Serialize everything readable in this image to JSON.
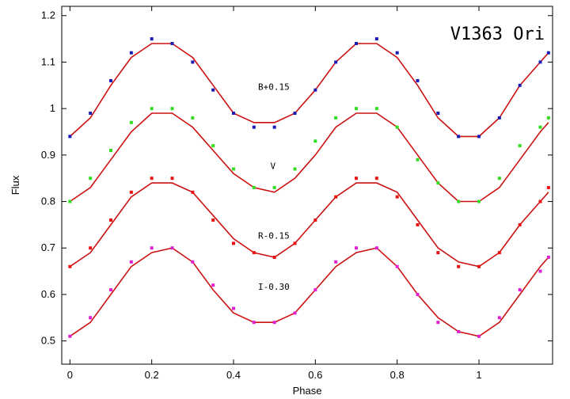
{
  "chart_data": {
    "type": "scatter",
    "title": "V1363 Ori",
    "xlabel": "Phase",
    "ylabel": "Flux",
    "xlim": [
      -0.02,
      1.18
    ],
    "ylim": [
      0.45,
      1.22
    ],
    "xticks": [
      0,
      0.2,
      0.4,
      0.6,
      0.8,
      1
    ],
    "xtick_labels": [
      "0",
      "0.2",
      "0.4",
      "0.6",
      "0.8",
      "1"
    ],
    "yticks": [
      0.5,
      0.6,
      0.7,
      0.8,
      0.9,
      1.0,
      1.1,
      1.2
    ],
    "ytick_labels": [
      "0.5",
      "0.6",
      "0.7",
      "0.8",
      "0.9",
      "1",
      "1.1",
      "1.2"
    ],
    "grid": false,
    "model_color": "#cc1111",
    "series": [
      {
        "name": "B+0.15",
        "color": "#1a1ab4",
        "label_at": [
          0.46,
          1.04
        ],
        "x": [
          0.0,
          0.05,
          0.1,
          0.15,
          0.2,
          0.25,
          0.3,
          0.35,
          0.4,
          0.45,
          0.5,
          0.55,
          0.6,
          0.65,
          0.7,
          0.75,
          0.8,
          0.85,
          0.9,
          0.95,
          1.0,
          1.05,
          1.1,
          1.15,
          1.17
        ],
        "y": [
          0.94,
          0.99,
          1.06,
          1.12,
          1.15,
          1.14,
          1.1,
          1.04,
          0.99,
          0.96,
          0.96,
          0.99,
          1.04,
          1.1,
          1.14,
          1.15,
          1.12,
          1.06,
          0.99,
          0.94,
          0.94,
          0.98,
          1.05,
          1.1,
          1.12
        ],
        "model_x": [
          0.0,
          0.05,
          0.1,
          0.15,
          0.2,
          0.25,
          0.3,
          0.35,
          0.4,
          0.45,
          0.5,
          0.55,
          0.6,
          0.65,
          0.7,
          0.75,
          0.8,
          0.85,
          0.9,
          0.95,
          1.0,
          1.05,
          1.1,
          1.15,
          1.17
        ],
        "model_y": [
          0.94,
          0.98,
          1.05,
          1.11,
          1.14,
          1.14,
          1.11,
          1.05,
          0.99,
          0.97,
          0.97,
          0.99,
          1.04,
          1.1,
          1.14,
          1.14,
          1.11,
          1.05,
          0.98,
          0.94,
          0.94,
          0.98,
          1.05,
          1.1,
          1.12
        ]
      },
      {
        "name": "V",
        "color": "#33dd22",
        "label_at": [
          0.49,
          0.87
        ],
        "x": [
          0.0,
          0.05,
          0.1,
          0.15,
          0.2,
          0.25,
          0.3,
          0.35,
          0.4,
          0.45,
          0.5,
          0.55,
          0.6,
          0.65,
          0.7,
          0.75,
          0.8,
          0.85,
          0.9,
          0.95,
          1.0,
          1.05,
          1.1,
          1.15,
          1.17
        ],
        "y": [
          0.8,
          0.85,
          0.91,
          0.97,
          1.0,
          1.0,
          0.98,
          0.92,
          0.87,
          0.83,
          0.83,
          0.87,
          0.93,
          0.98,
          1.0,
          1.0,
          0.96,
          0.89,
          0.84,
          0.8,
          0.8,
          0.85,
          0.92,
          0.96,
          0.98
        ],
        "model_x": [
          0.0,
          0.05,
          0.1,
          0.15,
          0.2,
          0.25,
          0.3,
          0.35,
          0.4,
          0.45,
          0.5,
          0.55,
          0.6,
          0.65,
          0.7,
          0.75,
          0.8,
          0.85,
          0.9,
          0.95,
          1.0,
          1.05,
          1.1,
          1.15,
          1.17
        ],
        "model_y": [
          0.8,
          0.83,
          0.89,
          0.95,
          0.99,
          0.99,
          0.96,
          0.91,
          0.86,
          0.83,
          0.82,
          0.85,
          0.9,
          0.96,
          0.99,
          0.99,
          0.96,
          0.9,
          0.84,
          0.8,
          0.8,
          0.83,
          0.89,
          0.95,
          0.97
        ]
      },
      {
        "name": "R-0.15",
        "color": "#e81010",
        "label_at": [
          0.46,
          0.72
        ],
        "x": [
          0.0,
          0.05,
          0.1,
          0.15,
          0.2,
          0.25,
          0.3,
          0.35,
          0.4,
          0.45,
          0.5,
          0.55,
          0.6,
          0.65,
          0.7,
          0.75,
          0.8,
          0.85,
          0.9,
          0.95,
          1.0,
          1.05,
          1.1,
          1.15,
          1.17
        ],
        "y": [
          0.66,
          0.7,
          0.76,
          0.82,
          0.85,
          0.85,
          0.82,
          0.76,
          0.71,
          0.69,
          0.68,
          0.71,
          0.76,
          0.81,
          0.85,
          0.85,
          0.81,
          0.75,
          0.69,
          0.66,
          0.66,
          0.69,
          0.75,
          0.8,
          0.83
        ],
        "model_x": [
          0.0,
          0.05,
          0.1,
          0.15,
          0.2,
          0.25,
          0.3,
          0.35,
          0.4,
          0.45,
          0.5,
          0.55,
          0.6,
          0.65,
          0.7,
          0.75,
          0.8,
          0.85,
          0.9,
          0.95,
          1.0,
          1.05,
          1.1,
          1.15,
          1.17
        ],
        "model_y": [
          0.66,
          0.69,
          0.75,
          0.81,
          0.84,
          0.84,
          0.82,
          0.77,
          0.72,
          0.69,
          0.68,
          0.71,
          0.76,
          0.81,
          0.84,
          0.84,
          0.82,
          0.76,
          0.7,
          0.67,
          0.66,
          0.69,
          0.75,
          0.8,
          0.82
        ]
      },
      {
        "name": "I-0.30",
        "color": "#e020d0",
        "label_at": [
          0.46,
          0.61
        ],
        "x": [
          0.0,
          0.05,
          0.1,
          0.15,
          0.2,
          0.25,
          0.3,
          0.35,
          0.4,
          0.45,
          0.5,
          0.55,
          0.6,
          0.65,
          0.7,
          0.75,
          0.8,
          0.85,
          0.9,
          0.95,
          1.0,
          1.05,
          1.1,
          1.15,
          1.17
        ],
        "y": [
          0.51,
          0.55,
          0.61,
          0.67,
          0.7,
          0.7,
          0.67,
          0.62,
          0.57,
          0.54,
          0.54,
          0.56,
          0.61,
          0.67,
          0.7,
          0.7,
          0.66,
          0.6,
          0.54,
          0.52,
          0.51,
          0.55,
          0.61,
          0.65,
          0.68
        ],
        "model_x": [
          0.0,
          0.05,
          0.1,
          0.15,
          0.2,
          0.25,
          0.3,
          0.35,
          0.4,
          0.45,
          0.5,
          0.55,
          0.6,
          0.65,
          0.7,
          0.75,
          0.8,
          0.85,
          0.9,
          0.95,
          1.0,
          1.05,
          1.1,
          1.15,
          1.17
        ],
        "model_y": [
          0.51,
          0.54,
          0.6,
          0.66,
          0.69,
          0.7,
          0.67,
          0.61,
          0.56,
          0.54,
          0.54,
          0.56,
          0.61,
          0.66,
          0.69,
          0.7,
          0.66,
          0.6,
          0.55,
          0.52,
          0.51,
          0.54,
          0.6,
          0.66,
          0.68
        ]
      }
    ]
  }
}
